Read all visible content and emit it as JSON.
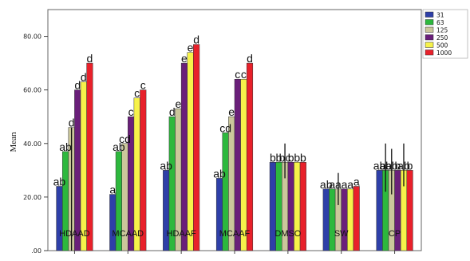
{
  "chart_data": {
    "type": "bar",
    "title": "",
    "xlabel": "",
    "ylabel": "Mean",
    "ylim": [
      0,
      90
    ],
    "yticks": [
      0,
      20,
      40,
      60,
      80
    ],
    "ytick_labels": [
      ".00",
      "20.00",
      "40.00",
      "60.00",
      "80.00"
    ],
    "grid": false,
    "legend_position": "top-right",
    "categories": [
      "HDAAD",
      "MCAAD",
      "HDAAF",
      "MCAAF",
      "DMSO",
      "SW",
      "CP"
    ],
    "series": [
      {
        "name": "31",
        "color": "#2e3fa8",
        "values": [
          24,
          21,
          30,
          27,
          33,
          23,
          30
        ]
      },
      {
        "name": "63",
        "color": "#2db83d",
        "values": [
          37,
          37,
          50,
          44,
          33,
          23,
          30
        ]
      },
      {
        "name": "125",
        "color": "#cbc79b",
        "values": [
          46,
          40,
          53,
          50,
          33,
          23,
          30
        ]
      },
      {
        "name": "250",
        "color": "#6a1f7a",
        "values": [
          60,
          50,
          70,
          64,
          33,
          23,
          30
        ]
      },
      {
        "name": "500",
        "color": "#f6f24a",
        "values": [
          63,
          57,
          74,
          64,
          33,
          23,
          30
        ]
      },
      {
        "name": "1000",
        "color": "#e8202a",
        "values": [
          70,
          60,
          77,
          70,
          33,
          24,
          30
        ]
      }
    ],
    "letters": [
      [
        "ab",
        "ab",
        "d",
        "d",
        "d",
        "d"
      ],
      [
        "a",
        "ab",
        "cd",
        "c",
        "c",
        "c"
      ],
      [
        "ab",
        "d",
        "e",
        "e",
        "e",
        "d"
      ],
      [
        "ab",
        "cd",
        "e",
        "c",
        "c",
        "d"
      ],
      [
        "b",
        "b",
        "bc",
        "b",
        "b",
        "b"
      ],
      [
        "ab",
        "a",
        "a",
        "a",
        "a",
        "a"
      ],
      [
        "ab",
        "ab",
        "ab",
        "b",
        "ab",
        "b"
      ]
    ],
    "error_bars": [
      {
        "category": "HDAAD",
        "series": "125",
        "low": 0,
        "high": 46
      },
      {
        "category": "DMSO",
        "series": "125",
        "low": 27,
        "high": 40
      },
      {
        "category": "SW",
        "series": "125",
        "low": 17,
        "high": 29
      },
      {
        "category": "CP",
        "series": "63",
        "low": 22,
        "high": 40
      },
      {
        "category": "CP",
        "series": "125",
        "low": 21,
        "high": 38
      },
      {
        "category": "CP",
        "series": "500",
        "low": 24,
        "high": 40
      }
    ]
  }
}
